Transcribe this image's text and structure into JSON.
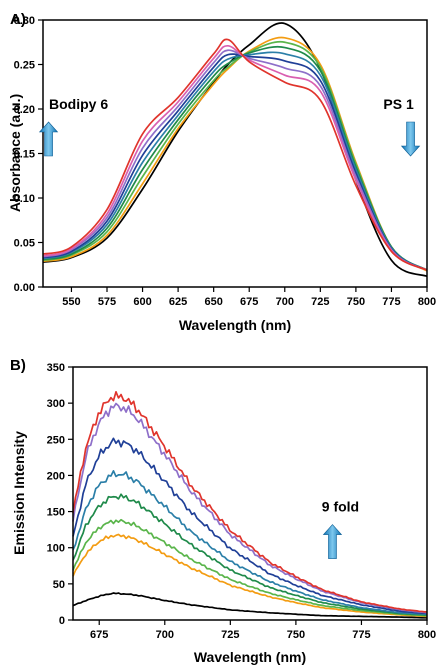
{
  "chart_data": [
    {
      "type": "line",
      "panel_label": "A)",
      "xlabel": "Wavelength (nm)",
      "ylabel": "Absorbance (a.u.)",
      "xlim": [
        530,
        800
      ],
      "ylim": [
        0.0,
        0.3
      ],
      "xticks": [
        550,
        575,
        600,
        625,
        650,
        675,
        700,
        725,
        750,
        775,
        800
      ],
      "yticks": [
        0.0,
        0.05,
        0.1,
        0.15,
        0.2,
        0.25,
        0.3
      ],
      "ytick_labels": [
        "0.00",
        "0.05",
        "0.10",
        "0.15",
        "0.20",
        "0.25",
        "0.30"
      ],
      "grid": false,
      "annotations": [
        {
          "text": "Bodipy 6",
          "arrow": "up",
          "x": 555,
          "y": 0.2
        },
        {
          "text": "PS 1",
          "arrow": "down",
          "x": 780,
          "y": 0.2
        }
      ],
      "x": [
        530,
        550,
        575,
        600,
        625,
        650,
        660,
        675,
        700,
        725,
        750,
        775,
        800
      ],
      "series": [
        {
          "color": "#000000",
          "values": [
            0.028,
            0.033,
            0.055,
            0.11,
            0.175,
            0.23,
            0.25,
            0.272,
            0.296,
            0.245,
            0.12,
            0.03,
            0.012
          ]
        },
        {
          "color": "#f39c12",
          "values": [
            0.029,
            0.034,
            0.058,
            0.116,
            0.178,
            0.228,
            0.245,
            0.265,
            0.28,
            0.25,
            0.14,
            0.045,
            0.018
          ]
        },
        {
          "color": "#5ab54b",
          "values": [
            0.03,
            0.036,
            0.062,
            0.124,
            0.183,
            0.232,
            0.247,
            0.264,
            0.275,
            0.247,
            0.138,
            0.045,
            0.019
          ]
        },
        {
          "color": "#1f8a4a",
          "values": [
            0.031,
            0.037,
            0.066,
            0.132,
            0.188,
            0.237,
            0.251,
            0.263,
            0.269,
            0.243,
            0.135,
            0.045,
            0.019
          ]
        },
        {
          "color": "#2b7fa8",
          "values": [
            0.032,
            0.039,
            0.07,
            0.14,
            0.193,
            0.242,
            0.256,
            0.261,
            0.262,
            0.238,
            0.132,
            0.044,
            0.019
          ]
        },
        {
          "color": "#1f3f97",
          "values": [
            0.033,
            0.04,
            0.074,
            0.148,
            0.198,
            0.247,
            0.261,
            0.259,
            0.254,
            0.232,
            0.128,
            0.043,
            0.019
          ]
        },
        {
          "color": "#8e6fc9",
          "values": [
            0.034,
            0.042,
            0.078,
            0.156,
            0.203,
            0.252,
            0.266,
            0.257,
            0.246,
            0.226,
            0.124,
            0.042,
            0.019
          ]
        },
        {
          "color": "#d95fb0",
          "values": [
            0.035,
            0.043,
            0.082,
            0.164,
            0.208,
            0.257,
            0.271,
            0.255,
            0.238,
            0.22,
            0.12,
            0.041,
            0.019
          ]
        },
        {
          "color": "#e0342c",
          "values": [
            0.037,
            0.045,
            0.087,
            0.172,
            0.213,
            0.262,
            0.278,
            0.253,
            0.23,
            0.21,
            0.114,
            0.04,
            0.019
          ]
        }
      ]
    },
    {
      "type": "line",
      "panel_label": "B)",
      "xlabel": "Wavelength (nm)",
      "ylabel": "Emission Intensity",
      "xlim": [
        665,
        800
      ],
      "ylim": [
        0,
        350
      ],
      "xticks": [
        675,
        700,
        725,
        750,
        775,
        800
      ],
      "yticks": [
        0,
        50,
        100,
        150,
        200,
        250,
        300,
        350
      ],
      "grid": false,
      "annotations": [
        {
          "text": "9 fold",
          "arrow": "up",
          "x": 767,
          "y": 150
        }
      ],
      "x": [
        665,
        670,
        675,
        680,
        685,
        690,
        700,
        710,
        725,
        740,
        750,
        760,
        775,
        790,
        800
      ],
      "series": [
        {
          "color": "#000000",
          "values": [
            20,
            27,
            33,
            37,
            36,
            34,
            27,
            21,
            14,
            10,
            8,
            6,
            5,
            4,
            3
          ]
        },
        {
          "color": "#f39c12",
          "values": [
            62,
            92,
            109,
            117,
            116,
            110,
            91,
            72,
            48,
            32,
            24,
            17,
            11,
            7,
            5
          ]
        },
        {
          "color": "#5ab54b",
          "values": [
            70,
            108,
            128,
            137,
            136,
            129,
            107,
            84,
            56,
            37,
            28,
            20,
            13,
            8,
            6
          ]
        },
        {
          "color": "#1f8a4a",
          "values": [
            82,
            132,
            158,
            171,
            170,
            161,
            133,
            104,
            69,
            45,
            34,
            24,
            15,
            9,
            7
          ]
        },
        {
          "color": "#2b7fa8",
          "values": [
            95,
            155,
            187,
            202,
            201,
            190,
            157,
            122,
            81,
            53,
            40,
            28,
            17,
            10,
            8
          ]
        },
        {
          "color": "#1f3f97",
          "values": [
            115,
            190,
            228,
            247,
            245,
            232,
            192,
            149,
            99,
            64,
            48,
            34,
            21,
            12,
            9
          ]
        },
        {
          "color": "#8e6fc9",
          "values": [
            138,
            228,
            273,
            296,
            293,
            277,
            229,
            178,
            118,
            76,
            57,
            40,
            24,
            14,
            10
          ]
        },
        {
          "color": "#e0342c",
          "values": [
            150,
            240,
            288,
            310,
            307,
            290,
            240,
            186,
            124,
            80,
            60,
            42,
            25,
            15,
            11
          ]
        }
      ]
    }
  ]
}
